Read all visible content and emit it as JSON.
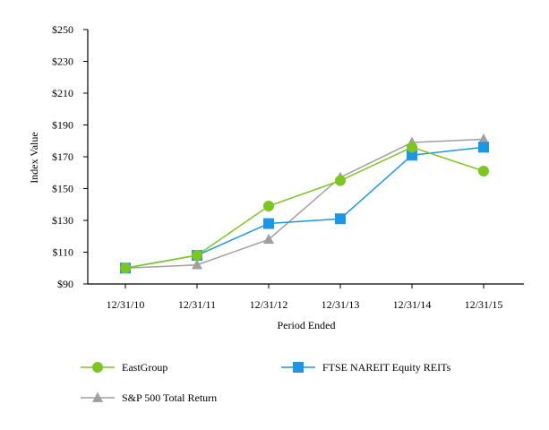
{
  "chart_data": {
    "type": "line",
    "xlabel": "Period Ended",
    "ylabel": "Index Value",
    "categories": [
      "12/31/10",
      "12/31/11",
      "12/31/12",
      "12/31/13",
      "12/31/14",
      "12/31/15"
    ],
    "ylim": [
      90,
      250
    ],
    "yticks": [
      90,
      110,
      130,
      150,
      170,
      190,
      210,
      230,
      250
    ],
    "ytick_labels": [
      "$90",
      "$110",
      "$130",
      "$150",
      "$170",
      "$190",
      "$210",
      "$230",
      "$250"
    ],
    "grid": false,
    "legend_position": "bottom",
    "series": [
      {
        "name": "EastGroup",
        "color": "#7dc621",
        "marker": "circle",
        "values": [
          100,
          108,
          139,
          155,
          176,
          161
        ]
      },
      {
        "name": "FTSE NAREIT Equity REITs",
        "color": "#1e96e6",
        "marker": "square",
        "values": [
          100,
          108,
          128,
          131,
          171,
          176
        ]
      },
      {
        "name": "S&P 500 Total Return",
        "color": "#a0a0a0",
        "marker": "triangle",
        "values": [
          100,
          102,
          118,
          157,
          179,
          181
        ]
      }
    ]
  }
}
